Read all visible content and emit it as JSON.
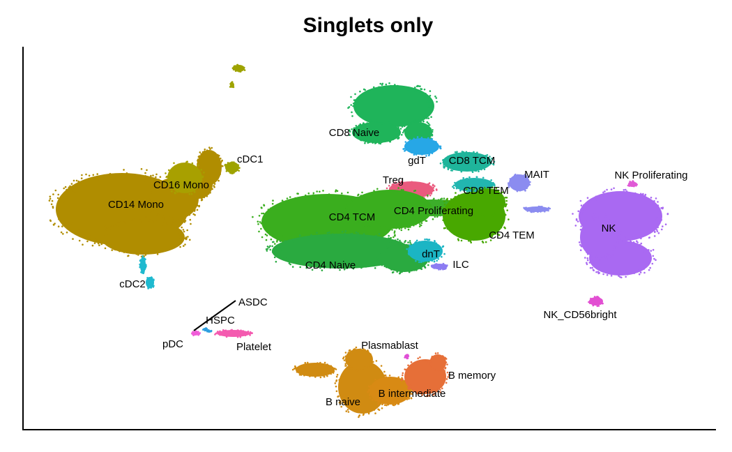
{
  "chart_data": {
    "type": "scatter",
    "title": "Singlets only",
    "xlabel": "",
    "ylabel": "",
    "grid": false,
    "legend": "none",
    "clusters": [
      {
        "label": "CD14 Mono",
        "color": "#b08d00"
      },
      {
        "label": "CD16 Mono",
        "color": "#a8a000"
      },
      {
        "label": "cDC1",
        "color": "#9ea300"
      },
      {
        "label": "cDC2",
        "color": "#1fb9cf"
      },
      {
        "label": "pDC",
        "color": "#f05cd8"
      },
      {
        "label": "ASDC",
        "color": "#2f9fe0"
      },
      {
        "label": "HSPC",
        "color": "#2f9fe0"
      },
      {
        "label": "Platelet",
        "color": "#f45bb0"
      },
      {
        "label": "CD8 Naive",
        "color": "#1fb45a"
      },
      {
        "label": "gdT",
        "color": "#27a7e6"
      },
      {
        "label": "CD8 TCM",
        "color": "#1fb59b"
      },
      {
        "label": "MAIT",
        "color": "#8b8cf0"
      },
      {
        "label": "Treg",
        "color": "#ea5a7e"
      },
      {
        "label": "CD8 TEM",
        "color": "#22b6b0"
      },
      {
        "label": "CD4 Proliferating",
        "color": "#3cae2a"
      },
      {
        "label": "CD4 TCM",
        "color": "#3aae1e"
      },
      {
        "label": "CD4 TEM",
        "color": "#48a800"
      },
      {
        "label": "CD4 Naive",
        "color": "#2aaa40"
      },
      {
        "label": "dnT",
        "color": "#1bb5c4"
      },
      {
        "label": "ILC",
        "color": "#8c7cf2"
      },
      {
        "label": "NK Proliferating",
        "color": "#e05ad6"
      },
      {
        "label": "NK",
        "color": "#a969f2"
      },
      {
        "label": "NK_CD56bright",
        "color": "#e24fd2"
      },
      {
        "label": "Plasmablast",
        "color": "#e04fd6"
      },
      {
        "label": "B naive",
        "color": "#d08b12"
      },
      {
        "label": "B intermediate",
        "color": "#d88a14"
      },
      {
        "label": "B memory",
        "color": "#e66f38"
      }
    ]
  }
}
